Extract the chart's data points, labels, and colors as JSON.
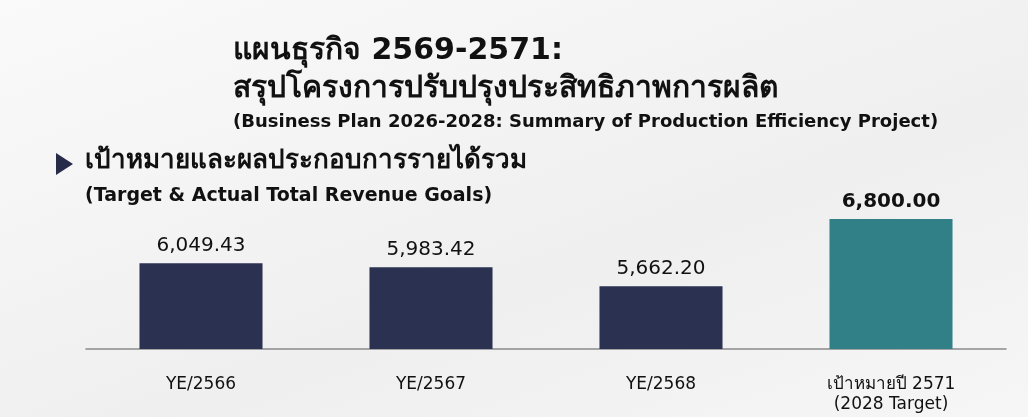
{
  "chart_data": {
    "type": "bar",
    "title": "แผนธุรกิจ 2569-2571:\nสรุปโครงการปรับปรุงประสิทธิภาพการผลิต",
    "subtitle": "(Business Plan 2026-2028: Summary of Production Efficiency Project)",
    "annotations": [
      "เป้าหมายและผลประกอบการรายได้รวม",
      "(Target & Actual Total Revenue Goals)"
    ],
    "categories": [
      "YE/2566",
      "YE/2567",
      "YE/2568",
      "เป้าหมายปี 2571\n(2028 Target)"
    ],
    "values": [
      6049.43,
      5983.42,
      5662.2,
      6800
    ],
    "value_labels": [
      "6,049.43",
      "5,983.42",
      "5,662.20",
      "6,800.00"
    ],
    "colors": [
      "#2b3150",
      "#2b3150",
      "#2b3150",
      "#318088"
    ],
    "ylim": [
      4600,
      6800
    ],
    "tick_labels": "x"
  }
}
